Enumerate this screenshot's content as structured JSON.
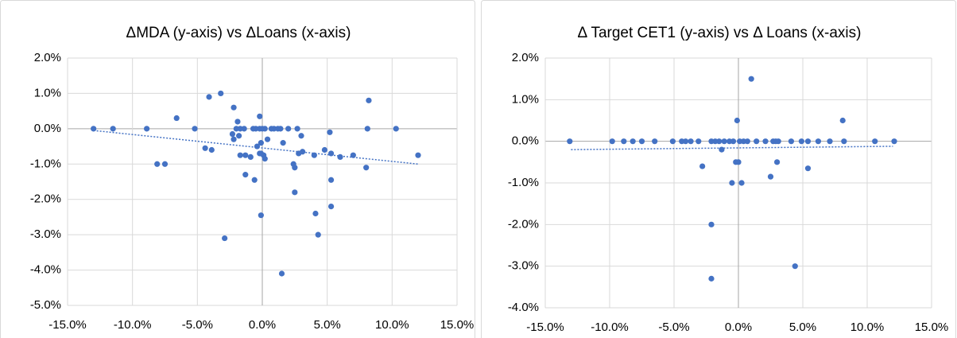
{
  "chart_data": [
    {
      "type": "scatter",
      "title": "ΔMDA (y-axis) vs ΔLoans (x-axis)",
      "color": "#4472c4",
      "grid": true,
      "xlim": [
        -15,
        15
      ],
      "ylim": [
        -5,
        2
      ],
      "xticks": [
        {
          "value": -15,
          "label": "-15.0%"
        },
        {
          "value": -10,
          "label": "-10.0%"
        },
        {
          "value": -5,
          "label": "-5.0%"
        },
        {
          "value": 0,
          "label": "0.0%"
        },
        {
          "value": 5,
          "label": "5.0%"
        },
        {
          "value": 10,
          "label": "10.0%"
        },
        {
          "value": 15,
          "label": "15.0%"
        }
      ],
      "yticks": [
        {
          "value": -5,
          "label": "-5.0%"
        },
        {
          "value": -4,
          "label": "-4.0%"
        },
        {
          "value": -3,
          "label": "-3.0%"
        },
        {
          "value": -2,
          "label": "-2.0%"
        },
        {
          "value": -1,
          "label": "-1.0%"
        },
        {
          "value": 0,
          "label": "0.0%"
        },
        {
          "value": 1,
          "label": "1.0%"
        },
        {
          "value": 2,
          "label": "2.0%"
        }
      ],
      "x": [
        -13.0,
        -11.5,
        -8.9,
        -8.1,
        -7.5,
        -6.6,
        -5.2,
        -4.4,
        -4.1,
        -3.9,
        -3.2,
        -2.9,
        -2.2,
        -2.3,
        -2.2,
        -2.0,
        -1.9,
        -1.8,
        -1.7,
        -1.7,
        -1.4,
        -1.3,
        -1.3,
        -0.9,
        -0.7,
        -0.6,
        -0.5,
        -0.4,
        -0.2,
        -0.2,
        -0.2,
        -0.1,
        -0.1,
        0,
        -0.1,
        0.1,
        0.2,
        0.2,
        0.4,
        0.7,
        0.9,
        1.2,
        1.4,
        1.5,
        1.6,
        2.0,
        2.4,
        2.5,
        2.5,
        2.7,
        2.8,
        3.0,
        3.1,
        4.0,
        4.1,
        4.3,
        4.8,
        5.2,
        5.3,
        5.3,
        5.3,
        6.0,
        7.0,
        8.0,
        8.1,
        8.2,
        10.3,
        12.0
      ],
      "values": [
        0,
        0,
        0,
        -1.0,
        -1.0,
        0.3,
        0,
        -0.55,
        0.9,
        -0.6,
        1.0,
        -3.1,
        0.6,
        -0.15,
        -0.3,
        0,
        0.2,
        -0.2,
        -0.75,
        0,
        0,
        -0.75,
        -1.3,
        -0.8,
        0,
        -1.45,
        0,
        -0.5,
        0.35,
        0,
        -0.7,
        -0.4,
        -0.7,
        0,
        -2.45,
        -0.75,
        0,
        -0.85,
        -0.3,
        0,
        0,
        0,
        0,
        -4.1,
        -0.4,
        0,
        -1.0,
        -1.1,
        -1.8,
        0,
        -0.7,
        -0.2,
        -0.65,
        -0.75,
        -2.4,
        -3.0,
        -0.6,
        -0.1,
        -1.45,
        -2.2,
        -0.7,
        -0.8,
        -0.75,
        -1.1,
        0,
        0.8,
        0,
        -0.75
      ],
      "trendline": {
        "x": [
          -13,
          12
        ],
        "values": [
          -0.05,
          -1.0
        ]
      }
    },
    {
      "type": "scatter",
      "title": "Δ Target CET1 (y-axis) vs Δ Loans (x-axis)",
      "color": "#4472c4",
      "grid": true,
      "xlim": [
        -15,
        15
      ],
      "ylim": [
        -4,
        2
      ],
      "xticks": [
        {
          "value": -15,
          "label": "-15.0%"
        },
        {
          "value": -10,
          "label": "-10.0%"
        },
        {
          "value": -5,
          "label": "-5.0%"
        },
        {
          "value": 0,
          "label": "0.0%"
        },
        {
          "value": 5,
          "label": "5.0%"
        },
        {
          "value": 10,
          "label": "10.0%"
        },
        {
          "value": 15,
          "label": "15.0%"
        }
      ],
      "yticks": [
        {
          "value": -4,
          "label": "-4.0%"
        },
        {
          "value": -3,
          "label": "-3.0%"
        },
        {
          "value": -2,
          "label": "-2.0%"
        },
        {
          "value": -1,
          "label": "-1.0%"
        },
        {
          "value": 0,
          "label": "0.0%"
        },
        {
          "value": 1,
          "label": "1.0%"
        },
        {
          "value": 2,
          "label": "2.0%"
        }
      ],
      "x": [
        -13.1,
        -9.8,
        -8.9,
        -8.2,
        -7.5,
        -6.5,
        -5.1,
        -4.4,
        -4.1,
        -3.7,
        -3.1,
        -2.8,
        -2.1,
        -2.1,
        -2.1,
        -1.8,
        -1.5,
        -1.3,
        -1.1,
        -0.7,
        -0.5,
        -0.4,
        -0.2,
        -0.1,
        0,
        0.1,
        0.25,
        0.4,
        0.7,
        1.0,
        1.4,
        2.1,
        2.5,
        2.7,
        2.9,
        3.0,
        3.1,
        4.1,
        4.4,
        4.9,
        5.4,
        5.4,
        6.2,
        7.1,
        8.1,
        8.2,
        10.6,
        12.1
      ],
      "values": [
        0,
        0,
        0,
        0,
        0,
        0,
        0,
        0,
        0,
        0,
        0,
        -0.6,
        0,
        -2.0,
        -3.3,
        0,
        0,
        -0.2,
        0,
        0,
        -1.0,
        0,
        -0.5,
        0.5,
        -0.5,
        0,
        -1.0,
        0,
        0,
        1.5,
        0,
        0,
        -0.85,
        0,
        0,
        -0.5,
        0,
        0,
        -3.0,
        0,
        0,
        -0.65,
        0,
        0,
        0.5,
        0,
        0,
        0
      ],
      "trendline": {
        "x": [
          -13,
          12
        ],
        "values": [
          -0.2,
          -0.12
        ]
      }
    }
  ]
}
